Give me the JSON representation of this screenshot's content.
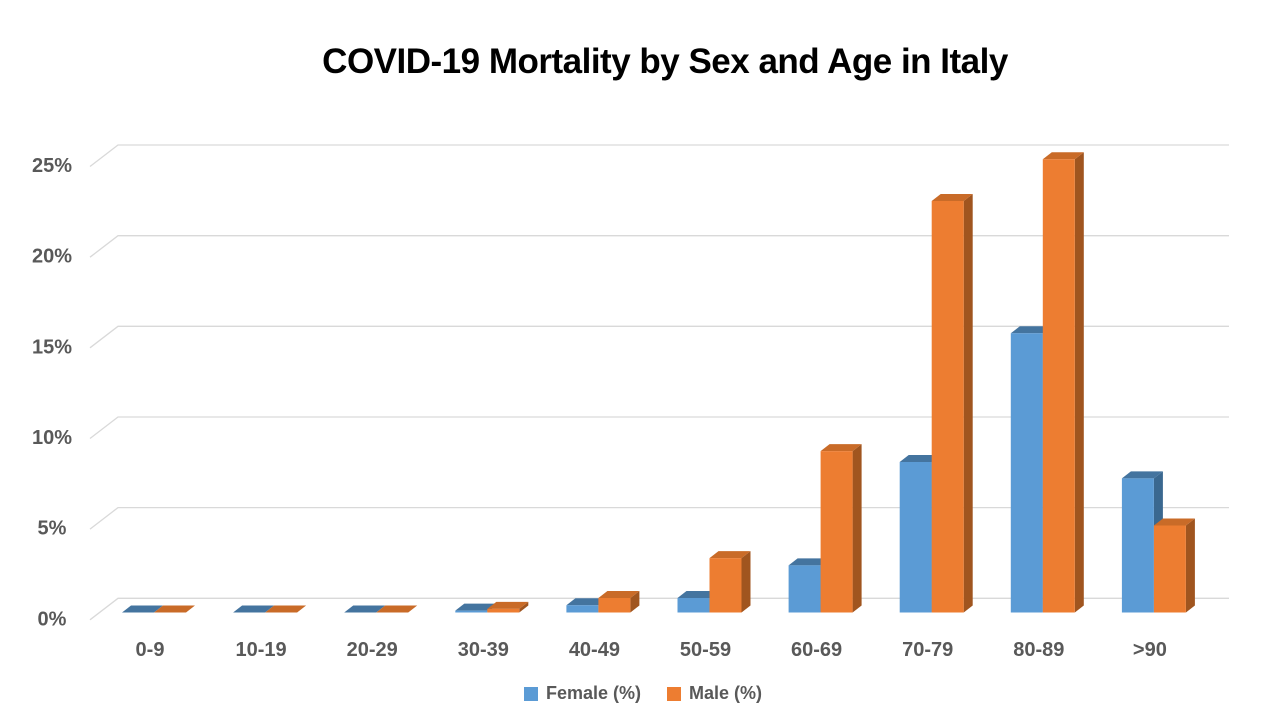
{
  "title": "COVID-19 Mortality by Sex and Age in Italy",
  "chart_data": {
    "type": "bar",
    "style": "3d-clustered-column",
    "title": "COVID-19 Mortality by Sex and Age in Italy",
    "categories": [
      "0-9",
      "10-19",
      "20-29",
      "30-39",
      "40-49",
      "50-59",
      "60-69",
      "70-79",
      "80-89",
      ">90"
    ],
    "series": [
      {
        "name": "Female (%)",
        "color": "#5B9BD5",
        "color_top": "#44749F",
        "color_side": "#3A6890",
        "values": [
          0,
          0,
          0,
          0.1,
          0.4,
          0.8,
          2.6,
          8.3,
          15.4,
          7.4
        ]
      },
      {
        "name": "Male (%)",
        "color": "#ED7D31",
        "color_top": "#C96B28",
        "color_side": "#A0551F",
        "values": [
          0,
          0,
          0,
          0.2,
          0.8,
          3.0,
          8.9,
          22.7,
          25.0,
          4.8
        ]
      }
    ],
    "xlabel": "",
    "ylabel": "",
    "y_ticks": [
      0,
      5,
      10,
      15,
      20,
      25
    ],
    "y_tick_labels": [
      "0%",
      "5%",
      "10%",
      "15%",
      "20%",
      "25%"
    ],
    "ylim": [
      0,
      25
    ],
    "grid": true,
    "legend_position": "bottom"
  },
  "colors": {
    "background": "#FFFFFF",
    "gridline": "#D9D9D9",
    "axis_label": "#595959",
    "title": "#000000"
  }
}
